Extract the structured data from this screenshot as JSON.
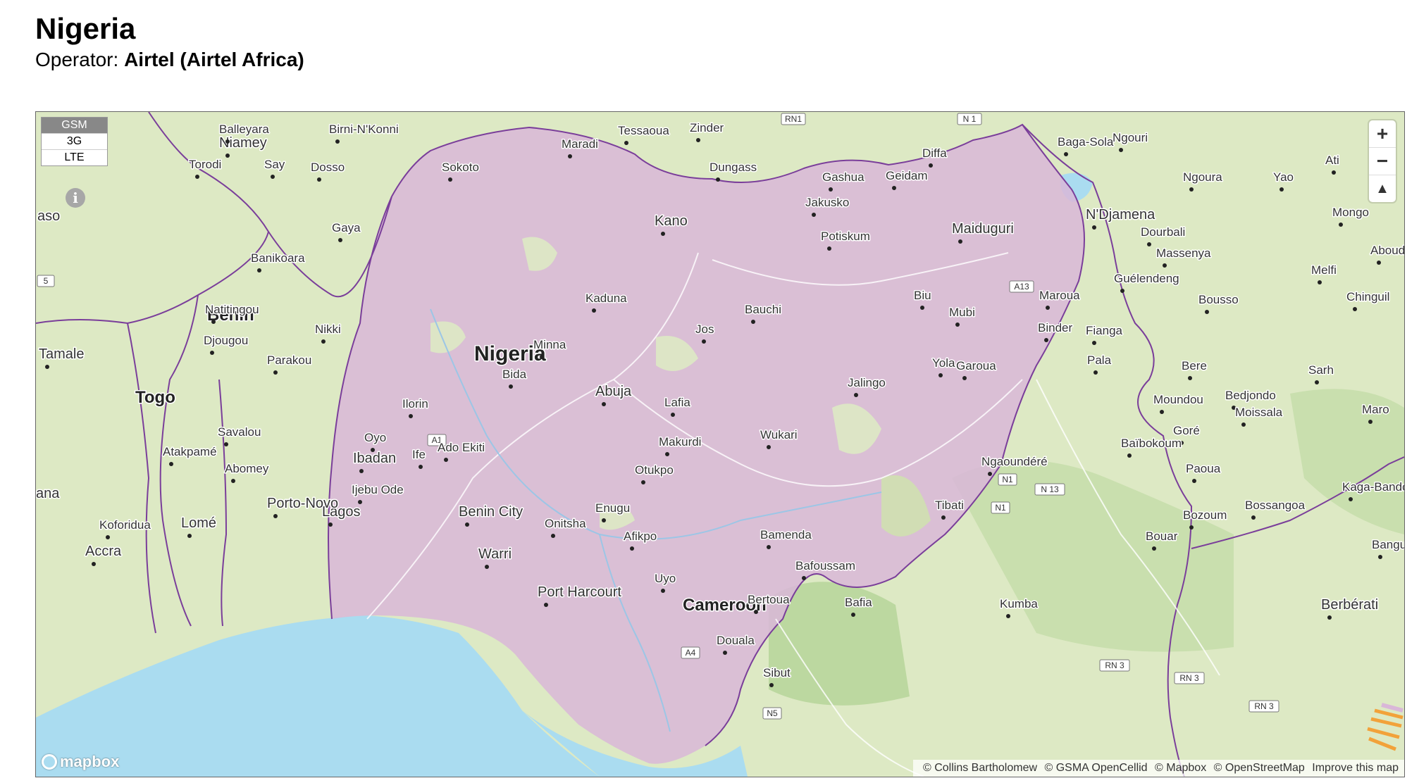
{
  "page": {
    "title": "Nigeria",
    "operator_label": "Operator:",
    "operator_name": "Airtel (Airtel Africa)"
  },
  "colors": {
    "coverage": "#d9b7d8",
    "land": "#dde9c4",
    "water": "#aadcf0",
    "border": "#7a3e9a"
  },
  "network_layers": [
    "GSM",
    "3G",
    "LTE"
  ],
  "active_layer": "GSM",
  "controls": {
    "info": "i",
    "zoom_in": "+",
    "zoom_out": "−",
    "reset_north": "▲"
  },
  "logo": "mapbox",
  "attribution": {
    "items": [
      "© Collins Bartholomew",
      "© GSMA OpenCellid",
      "© Mapbox",
      "© OpenStreetMap"
    ],
    "improve": "Improve this map"
  },
  "places": [
    "Nigeria",
    "Benin",
    "Togo",
    "Cameroon",
    "Niamey",
    "Balleyara",
    "Birni-N'Konni",
    "Tessaoua",
    "Zinder",
    "Maradi",
    "Dosso",
    "Torodi",
    "Say",
    "Gaya",
    "Sokoto",
    "Dungass",
    "Diffa",
    "Baga-Sola",
    "Ngouri",
    "Gashua",
    "Geidam",
    "Jakusko",
    "Kano",
    "Potiskum",
    "Maiduguri",
    "N'Djamena",
    "Dourbali",
    "Massenya",
    "Ngoura",
    "Yao",
    "Ati",
    "Mongo",
    "Abouděia",
    "Melfi",
    "Guélendeng",
    "Bousso",
    "Chinguil",
    "aso",
    "Banikoara",
    "Natitingou",
    "Djougou",
    "Parakou",
    "Nikki",
    "Tamale",
    "Kaduna",
    "Bauchi",
    "Biu",
    "Mubi",
    "Maroua",
    "Jos",
    "Minna",
    "Bida",
    "Abuja",
    "Lafia",
    "Yola",
    "Garoua",
    "Binder",
    "Fianga",
    "Pala",
    "Bere",
    "Sarh",
    "Ilorin",
    "Oyo",
    "Ibadan",
    "Ife",
    "Ado Ekiti",
    "Ijebu Ode",
    "Lagos",
    "Porto-Novo",
    "Savalou",
    "Atakpamé",
    "Abomey",
    "Lomé",
    "Koforidua",
    "Accra",
    "ana",
    "Jalingo",
    "Wukari",
    "Makurdi",
    "Otukpo",
    "Benin City",
    "Onitsha",
    "Enugu",
    "Warri",
    "Afikpo",
    "Uyo",
    "Port Harcourt",
    "Moundou",
    "Bedjondo",
    "Moissala",
    "Maro",
    "Goré",
    "Baïbokoum",
    "Ngaoundéré",
    "Paoua",
    "Kaga-Bando",
    "Tibati",
    "Bozoum",
    "Bossangoa",
    "Bouar",
    "Bamenda",
    "Bafoussam",
    "Bafia",
    "Bertoua",
    "Kumba",
    "Douala",
    "Sibut",
    "Bangui",
    "Berbérati"
  ],
  "road_shields": [
    "RN1",
    "N 1",
    "A13",
    "A1",
    "N1",
    "N 13",
    "N1",
    "A4",
    "N5",
    "RN 3",
    "RN 3",
    "RN 3",
    "5"
  ]
}
